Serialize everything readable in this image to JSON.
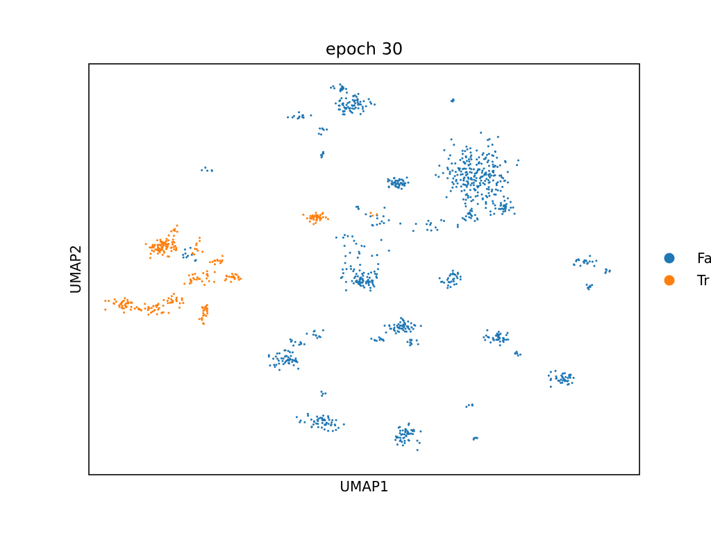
{
  "chart_data": {
    "type": "scatter",
    "title": "epoch 30",
    "xlabel": "UMAP1",
    "ylabel": "UMAP2",
    "xlim": [
      0,
      100
    ],
    "ylim": [
      0,
      100
    ],
    "grid": false,
    "legend_placement": "right, outside plot",
    "colors": {
      "False": "#1f77b4",
      "True": "#ff7f0e"
    },
    "legend": [
      {
        "label": "False",
        "display": "Fa",
        "color": "#1f77b4"
      },
      {
        "label": "True",
        "display": "Tr",
        "color": "#ff7f0e"
      }
    ],
    "clusters": [
      {
        "group": "False",
        "cx": 47.9,
        "cy": 90.0,
        "sx": 1.6,
        "sy": 1.2,
        "n": 70
      },
      {
        "group": "False",
        "cx": 45.6,
        "cy": 94.0,
        "sx": 0.8,
        "sy": 0.4,
        "n": 16
      },
      {
        "group": "False",
        "cx": 38.2,
        "cy": 87.3,
        "sx": 0.9,
        "sy": 0.4,
        "n": 12
      },
      {
        "group": "False",
        "cx": 42.3,
        "cy": 83.7,
        "sx": 0.5,
        "sy": 0.5,
        "n": 7
      },
      {
        "group": "False",
        "cx": 42.3,
        "cy": 78.0,
        "sx": 0.4,
        "sy": 0.5,
        "n": 6
      },
      {
        "group": "False",
        "cx": 66.0,
        "cy": 91.0,
        "sx": 0.3,
        "sy": 0.2,
        "n": 5
      },
      {
        "group": "False",
        "cx": 70.5,
        "cy": 72.5,
        "sx": 3.0,
        "sy": 4.3,
        "n": 260
      },
      {
        "group": "False",
        "cx": 75.3,
        "cy": 64.8,
        "sx": 1.0,
        "sy": 0.6,
        "n": 25
      },
      {
        "group": "False",
        "cx": 69.2,
        "cy": 63.0,
        "sx": 0.8,
        "sy": 0.8,
        "n": 14
      },
      {
        "group": "False",
        "cx": 56.5,
        "cy": 71.0,
        "sx": 1.1,
        "sy": 0.9,
        "n": 35
      },
      {
        "group": "False",
        "cx": 21.4,
        "cy": 74.0,
        "sx": 0.6,
        "sy": 0.3,
        "n": 5
      },
      {
        "group": "False",
        "cx": 49.0,
        "cy": 55.5,
        "sx": 2.2,
        "sy": 3.8,
        "n": 30
      },
      {
        "group": "False",
        "cx": 49.8,
        "cy": 47.5,
        "sx": 1.6,
        "sy": 1.3,
        "n": 70
      },
      {
        "group": "False",
        "cx": 52.8,
        "cy": 62.0,
        "sx": 1.0,
        "sy": 1.0,
        "n": 10
      },
      {
        "group": "False",
        "cx": 61.5,
        "cy": 60.5,
        "sx": 2.2,
        "sy": 1.0,
        "n": 14
      },
      {
        "group": "False",
        "cx": 49.0,
        "cy": 65.0,
        "sx": 0.4,
        "sy": 0.3,
        "n": 4
      },
      {
        "group": "False",
        "cx": 66.2,
        "cy": 47.7,
        "sx": 1.0,
        "sy": 0.9,
        "n": 30
      },
      {
        "group": "False",
        "cx": 90.0,
        "cy": 52.0,
        "sx": 1.0,
        "sy": 0.6,
        "n": 20
      },
      {
        "group": "False",
        "cx": 94.0,
        "cy": 49.5,
        "sx": 0.3,
        "sy": 0.4,
        "n": 6
      },
      {
        "group": "False",
        "cx": 91.0,
        "cy": 46.0,
        "sx": 0.5,
        "sy": 0.5,
        "n": 8
      },
      {
        "group": "False",
        "cx": 56.8,
        "cy": 36.0,
        "sx": 1.4,
        "sy": 0.9,
        "n": 50
      },
      {
        "group": "False",
        "cx": 52.8,
        "cy": 33.0,
        "sx": 1.0,
        "sy": 0.5,
        "n": 10
      },
      {
        "group": "False",
        "cx": 58.3,
        "cy": 32.3,
        "sx": 0.6,
        "sy": 0.5,
        "n": 10
      },
      {
        "group": "False",
        "cx": 74.3,
        "cy": 33.5,
        "sx": 1.2,
        "sy": 0.8,
        "n": 40
      },
      {
        "group": "False",
        "cx": 78.0,
        "cy": 29.2,
        "sx": 0.5,
        "sy": 0.5,
        "n": 6
      },
      {
        "group": "False",
        "cx": 86.2,
        "cy": 23.5,
        "sx": 1.3,
        "sy": 0.9,
        "n": 40
      },
      {
        "group": "False",
        "cx": 35.7,
        "cy": 28.0,
        "sx": 1.2,
        "sy": 1.0,
        "n": 50
      },
      {
        "group": "False",
        "cx": 38.5,
        "cy": 32.0,
        "sx": 0.9,
        "sy": 0.7,
        "n": 10
      },
      {
        "group": "False",
        "cx": 41.5,
        "cy": 34.0,
        "sx": 0.8,
        "sy": 0.5,
        "n": 10
      },
      {
        "group": "False",
        "cx": 42.2,
        "cy": 13.0,
        "sx": 1.8,
        "sy": 1.1,
        "n": 50
      },
      {
        "group": "False",
        "cx": 42.6,
        "cy": 20.0,
        "sx": 0.3,
        "sy": 0.4,
        "n": 4
      },
      {
        "group": "False",
        "cx": 57.3,
        "cy": 9.5,
        "sx": 1.4,
        "sy": 1.4,
        "n": 50
      },
      {
        "group": "False",
        "cx": 69.5,
        "cy": 16.8,
        "sx": 0.4,
        "sy": 0.4,
        "n": 5
      },
      {
        "group": "False",
        "cx": 70.2,
        "cy": 8.8,
        "sx": 0.3,
        "sy": 0.2,
        "n": 5
      },
      {
        "group": "False",
        "cx": 18.0,
        "cy": 53.5,
        "sx": 0.7,
        "sy": 1.2,
        "n": 10
      },
      {
        "group": "False",
        "cx": 57.0,
        "cy": 71.5,
        "sx": 0.6,
        "sy": 0.6,
        "n": 10
      },
      {
        "group": "True",
        "cx": 13.3,
        "cy": 55.5,
        "sx": 1.4,
        "sy": 1.1,
        "n": 80
      },
      {
        "group": "True",
        "cx": 15.5,
        "cy": 59.0,
        "sx": 0.4,
        "sy": 0.8,
        "n": 8
      },
      {
        "group": "True",
        "cx": 19.5,
        "cy": 55.5,
        "sx": 0.5,
        "sy": 1.4,
        "n": 10
      },
      {
        "group": "True",
        "cx": 23.2,
        "cy": 52.0,
        "sx": 0.7,
        "sy": 0.5,
        "n": 12
      },
      {
        "group": "True",
        "cx": 26.0,
        "cy": 48.0,
        "sx": 0.9,
        "sy": 0.8,
        "n": 20
      },
      {
        "group": "True",
        "cx": 19.5,
        "cy": 47.5,
        "sx": 1.3,
        "sy": 0.9,
        "n": 20
      },
      {
        "group": "True",
        "cx": 22.0,
        "cy": 49.0,
        "sx": 0.5,
        "sy": 0.3,
        "n": 6
      },
      {
        "group": "True",
        "cx": 6.0,
        "cy": 41.5,
        "sx": 1.2,
        "sy": 0.8,
        "n": 40
      },
      {
        "group": "True",
        "cx": 8.8,
        "cy": 40.5,
        "sx": 0.4,
        "sy": 0.3,
        "n": 5
      },
      {
        "group": "True",
        "cx": 12.0,
        "cy": 40.5,
        "sx": 1.0,
        "sy": 0.8,
        "n": 30
      },
      {
        "group": "True",
        "cx": 16.0,
        "cy": 42.5,
        "sx": 0.8,
        "sy": 0.8,
        "n": 20
      },
      {
        "group": "True",
        "cx": 21.0,
        "cy": 40.0,
        "sx": 0.5,
        "sy": 0.8,
        "n": 20
      },
      {
        "group": "True",
        "cx": 20.5,
        "cy": 37.0,
        "sx": 0.3,
        "sy": 0.9,
        "n": 6
      },
      {
        "group": "True",
        "cx": 41.2,
        "cy": 62.5,
        "sx": 0.9,
        "sy": 0.6,
        "n": 40
      },
      {
        "group": "True",
        "cx": 51.6,
        "cy": 63.5,
        "sx": 0.3,
        "sy": 0.3,
        "n": 3
      }
    ]
  }
}
